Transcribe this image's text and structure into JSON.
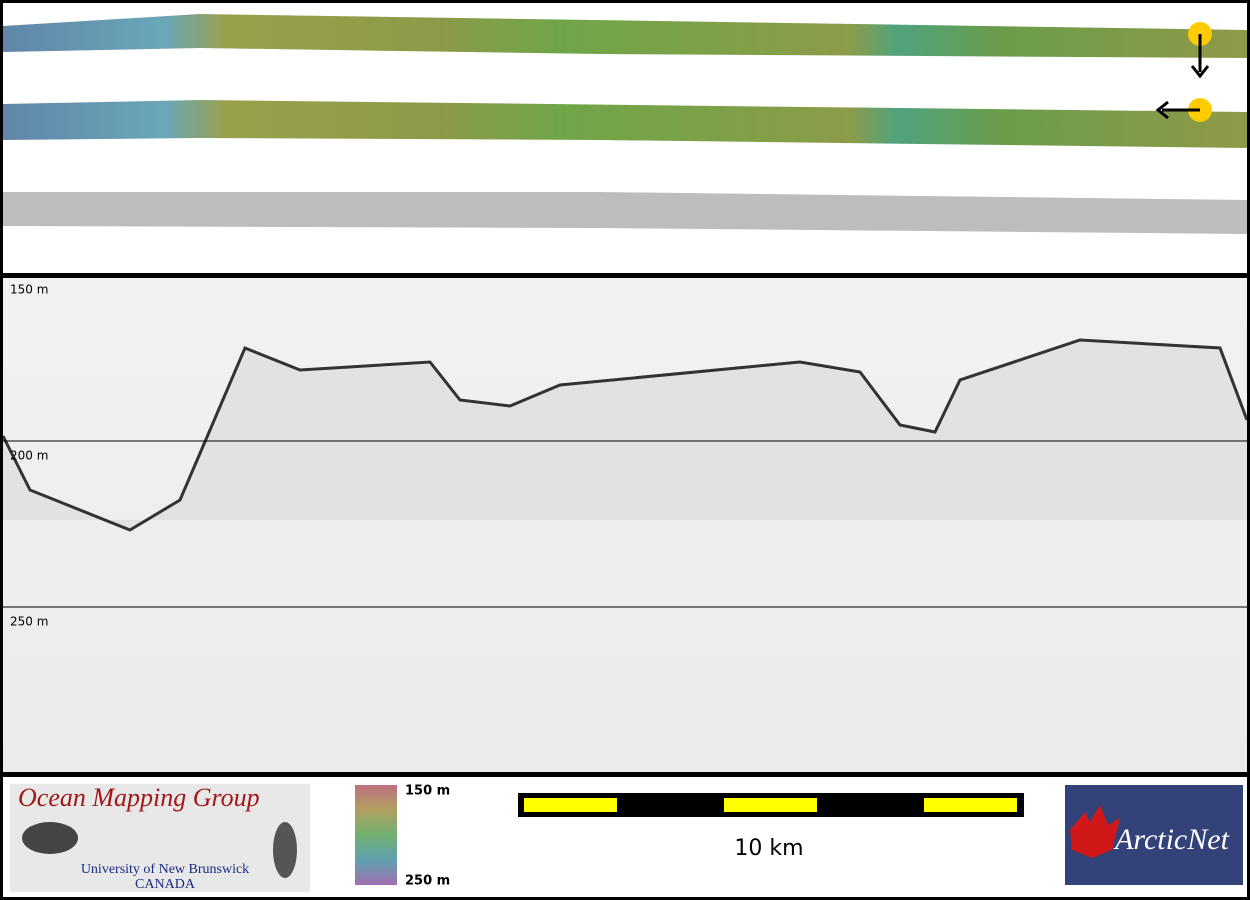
{
  "profile": {
    "depth_labels": [
      "150 m",
      "200 m",
      "250 m"
    ]
  },
  "legend": {
    "logo": {
      "title": "Ocean Mapping Group",
      "subtitle": "University of New Brunswick",
      "country": "CANADA"
    },
    "color_scale": {
      "top": "150 m",
      "bottom": "250 m"
    },
    "scale_bar": {
      "label": "10 km"
    },
    "partner_logo": {
      "label": "ArcticNet"
    }
  }
}
